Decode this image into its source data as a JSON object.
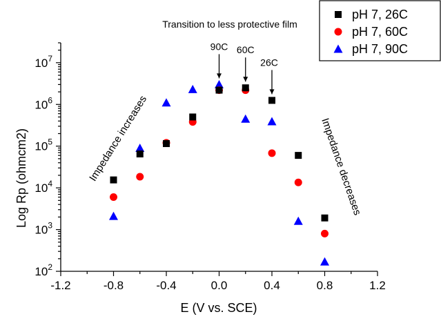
{
  "chart_data": {
    "type": "scatter",
    "xlabel": "E (V vs. SCE)",
    "ylabel": "Log Rp (ohmcm2)",
    "xlim": [
      -1.2,
      1.2
    ],
    "ylim": [
      100,
      30000000
    ],
    "y_scale": "log",
    "x_ticks": [
      "-1.2",
      "-0.8",
      "-0.4",
      "0.0",
      "0.4",
      "0.8",
      "1.2"
    ],
    "x_tick_values": [
      -1.2,
      -0.8,
      -0.4,
      0.0,
      0.4,
      0.8,
      1.2
    ],
    "y_tick_exponents": [
      2,
      3,
      4,
      5,
      6,
      7
    ],
    "grid": false,
    "legend_position": "top-right",
    "series": [
      {
        "name": "pH 7, 26C",
        "marker": "square",
        "color": "#000000",
        "x": [
          -0.8,
          -0.6,
          -0.4,
          -0.2,
          0.0,
          0.2,
          0.4,
          0.6,
          0.8
        ],
        "y": [
          15500,
          65000,
          115000,
          500000,
          2200000,
          2500000,
          1250000,
          60000,
          1900
        ]
      },
      {
        "name": "pH 7, 60C",
        "marker": "circle",
        "color": "#ff0000",
        "x": [
          -0.8,
          -0.6,
          -0.4,
          -0.2,
          0.0,
          0.2,
          0.4,
          0.6,
          0.8
        ],
        "y": [
          6000,
          18500,
          120000,
          380000,
          2200000,
          2200000,
          68000,
          13500,
          800
        ]
      },
      {
        "name": "pH 7, 90C",
        "marker": "triangle",
        "color": "#0000ff",
        "x": [
          -0.8,
          -0.6,
          -0.4,
          -0.2,
          0.0,
          0.2,
          0.4,
          0.6,
          0.8
        ],
        "y": [
          2100,
          90000,
          1100000,
          2300000,
          3000000,
          450000,
          390000,
          1600,
          170
        ]
      }
    ],
    "annotations": {
      "transition": "Transition to less protective film",
      "impedance_increases": "Impedance increases",
      "impedance_decreases": "Impedance decreases",
      "arrows": [
        {
          "label": "90C",
          "x": 0.0,
          "y": 3000000
        },
        {
          "label": "60C",
          "x": 0.2,
          "y": 2500000
        },
        {
          "label": "26C",
          "x": 0.4,
          "y": 1250000
        }
      ]
    }
  }
}
